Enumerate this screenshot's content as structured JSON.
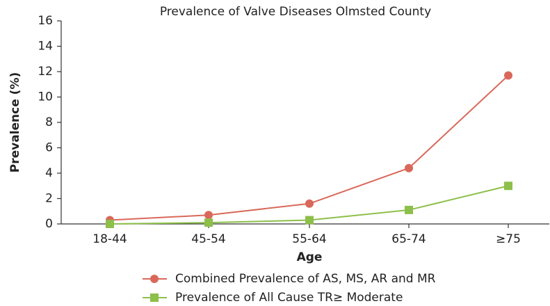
{
  "chart_data": {
    "type": "line",
    "title": "Prevalence of Valve Diseases Olmsted County",
    "x_label": "Age",
    "y_label": "Prevalence (%)",
    "categories": [
      "18-44",
      "45-54",
      "55-64",
      "65-74",
      "≥75"
    ],
    "series": [
      {
        "name": "Combined Prevalence of AS, MS, AR and MR",
        "color": "#d9685a",
        "marker": "circle",
        "values": [
          0.3,
          0.7,
          1.6,
          4.4,
          11.7
        ]
      },
      {
        "name": "Prevalence of All Cause TR≥ Moderate",
        "color": "#8dbf4a",
        "marker": "square",
        "values": [
          0,
          0.1,
          0.3,
          1.1,
          3.0
        ]
      }
    ],
    "ylim": [
      0,
      16
    ],
    "yticks": [
      0,
      2,
      4,
      6,
      8,
      10,
      12,
      14,
      16
    ],
    "legend": "bottom"
  }
}
